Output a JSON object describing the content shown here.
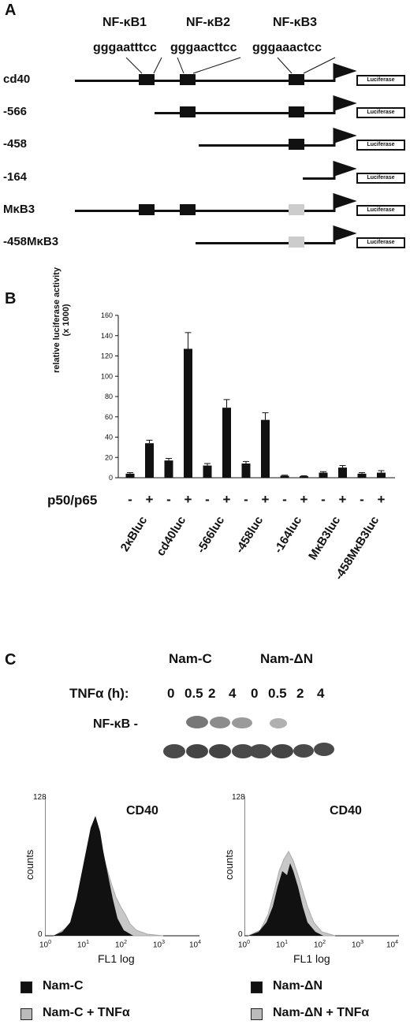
{
  "panel_a": {
    "letter": "A",
    "sites": [
      {
        "name": "NF-κB1",
        "seq": "gggaatttcc"
      },
      {
        "name": "NF-κB2",
        "seq": "gggaacttcc"
      },
      {
        "name": "NF-κB3",
        "seq": "gggaaactcc"
      }
    ],
    "constructs": [
      "cd40",
      "-566",
      "-458",
      "-164",
      "MκB3",
      "-458MκB3"
    ],
    "reporter_label": "Luciferase"
  },
  "panel_b": {
    "letter": "B",
    "condition_label": "p50/p65",
    "signs": [
      "-",
      "+",
      "-",
      "+",
      "-",
      "+",
      "-",
      "+",
      "-",
      "+",
      "-",
      "+",
      "-",
      "+"
    ]
  },
  "chart_data": {
    "type": "bar",
    "ylabel": "relative luciferase activity\n(x 1000)",
    "ylabel_lines": [
      "relative luciferase activity",
      "(x 1000)"
    ],
    "ylim": [
      0,
      160
    ],
    "yticks": [
      0,
      20,
      40,
      60,
      80,
      100,
      120,
      140,
      160
    ],
    "groups": [
      "2κBluc",
      "cd40luc",
      "-566luc",
      "-458luc",
      "-164luc",
      "MκB3luc",
      "-458MκB3luc"
    ],
    "bars": [
      {
        "group": "2κBluc",
        "p50p65": "-",
        "value": 4,
        "error": 1
      },
      {
        "group": "2κBluc",
        "p50p65": "+",
        "value": 34,
        "error": 3
      },
      {
        "group": "cd40luc",
        "p50p65": "-",
        "value": 17,
        "error": 2
      },
      {
        "group": "cd40luc",
        "p50p65": "+",
        "value": 127,
        "error": 16
      },
      {
        "group": "-566luc",
        "p50p65": "-",
        "value": 12,
        "error": 2
      },
      {
        "group": "-566luc",
        "p50p65": "+",
        "value": 69,
        "error": 8
      },
      {
        "group": "-458luc",
        "p50p65": "-",
        "value": 14,
        "error": 2
      },
      {
        "group": "-458luc",
        "p50p65": "+",
        "value": 57,
        "error": 7
      },
      {
        "group": "-164luc",
        "p50p65": "-",
        "value": 2,
        "error": 0.5
      },
      {
        "group": "-164luc",
        "p50p65": "+",
        "value": 1.5,
        "error": 0.5
      },
      {
        "group": "MκB3luc",
        "p50p65": "-",
        "value": 5,
        "error": 1
      },
      {
        "group": "MκB3luc",
        "p50p65": "+",
        "value": 10,
        "error": 2
      },
      {
        "group": "-458MκB3luc",
        "p50p65": "-",
        "value": 4,
        "error": 1
      },
      {
        "group": "-458MκB3luc",
        "p50p65": "+",
        "value": 5,
        "error": 2
      }
    ],
    "grid": false
  },
  "panel_c": {
    "letter": "C",
    "cell_lines": [
      "Nam-C",
      "Nam-ΔN"
    ],
    "tnf_label": "TNFα (h):",
    "timepoints_left": [
      "0",
      "0.5",
      "2",
      "4"
    ],
    "timepoints_right": [
      "0",
      "0.5",
      "2",
      "4"
    ],
    "band_label": "NF-κB -",
    "nfkb_band_intensity_left": [
      0,
      0.8,
      0.6,
      0.5
    ],
    "nfkb_band_intensity_right": [
      0,
      0.4,
      0,
      0
    ],
    "histograms": [
      {
        "title": "CD40",
        "ymax_label": "128",
        "ylabel": "counts",
        "xlabel": "FL1 log",
        "zero": "0",
        "xticks": [
          "10",
          "10",
          "10",
          "10",
          "10"
        ],
        "xtick_exps": [
          "0",
          "1",
          "2",
          "3",
          "4"
        ]
      },
      {
        "title": "CD40",
        "ymax_label": "128",
        "ylabel": "counts",
        "xlabel": "FL1 log",
        "zero": "0",
        "xticks": [
          "10",
          "10",
          "10",
          "10",
          "10"
        ],
        "xtick_exps": [
          "0",
          "1",
          "2",
          "3",
          "4"
        ]
      }
    ],
    "legend": [
      {
        "label": "Nam-C",
        "color": "#111111"
      },
      {
        "label": "Nam-ΔN",
        "color": "#111111"
      },
      {
        "label": "Nam-C + TNFα",
        "color": "#bbbbbb"
      },
      {
        "label": "Nam-ΔN + TNFα",
        "color": "#bbbbbb"
      }
    ]
  }
}
